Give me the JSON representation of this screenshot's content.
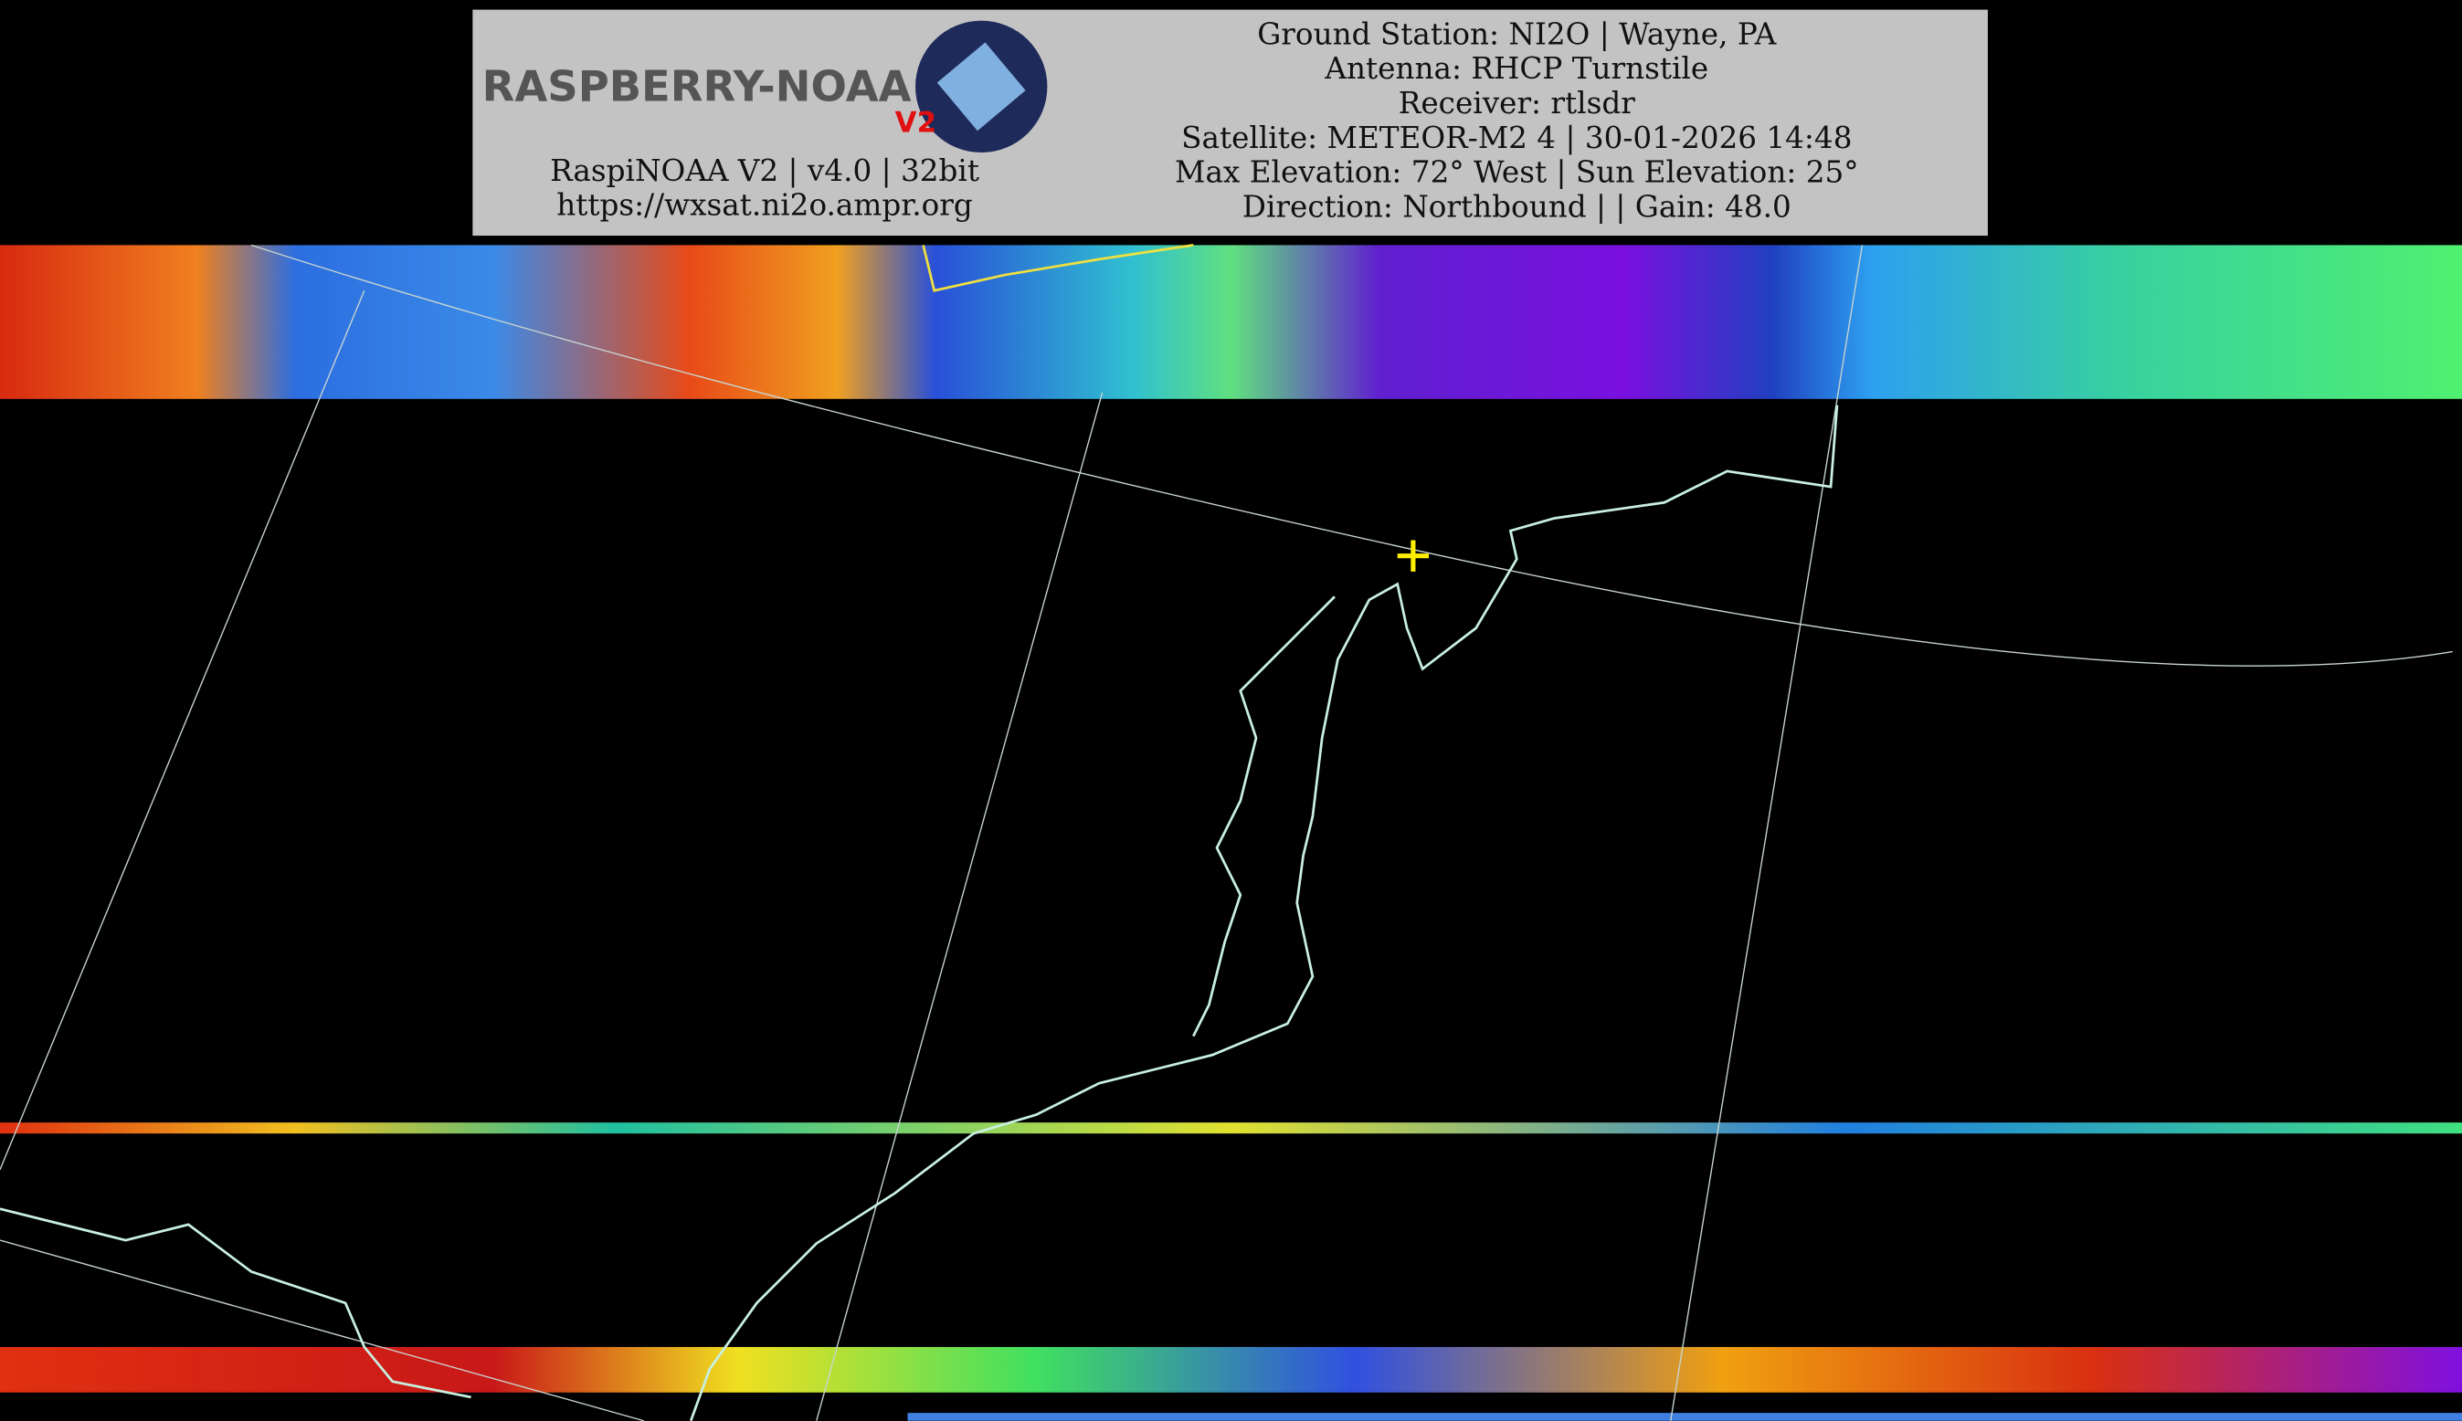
{
  "header": {
    "logo": "RASPBERRY-NOAA",
    "logo_badge": "V2",
    "software": "RaspiNOAA V2 | v4.0 | 32bit",
    "url": "https://wxsat.ni2o.ampr.org",
    "info": [
      "Ground Station: NI2O | Wayne, PA",
      "Antenna: RHCP Turnstile",
      "Receiver: rtlsdr",
      "Satellite: METEOR-M2 4 | 30-01-2026 14:48",
      "Max Elevation: 72° West | Sun Elevation: 25°",
      "Direction: Northbound | | Gain: 48.0"
    ]
  }
}
